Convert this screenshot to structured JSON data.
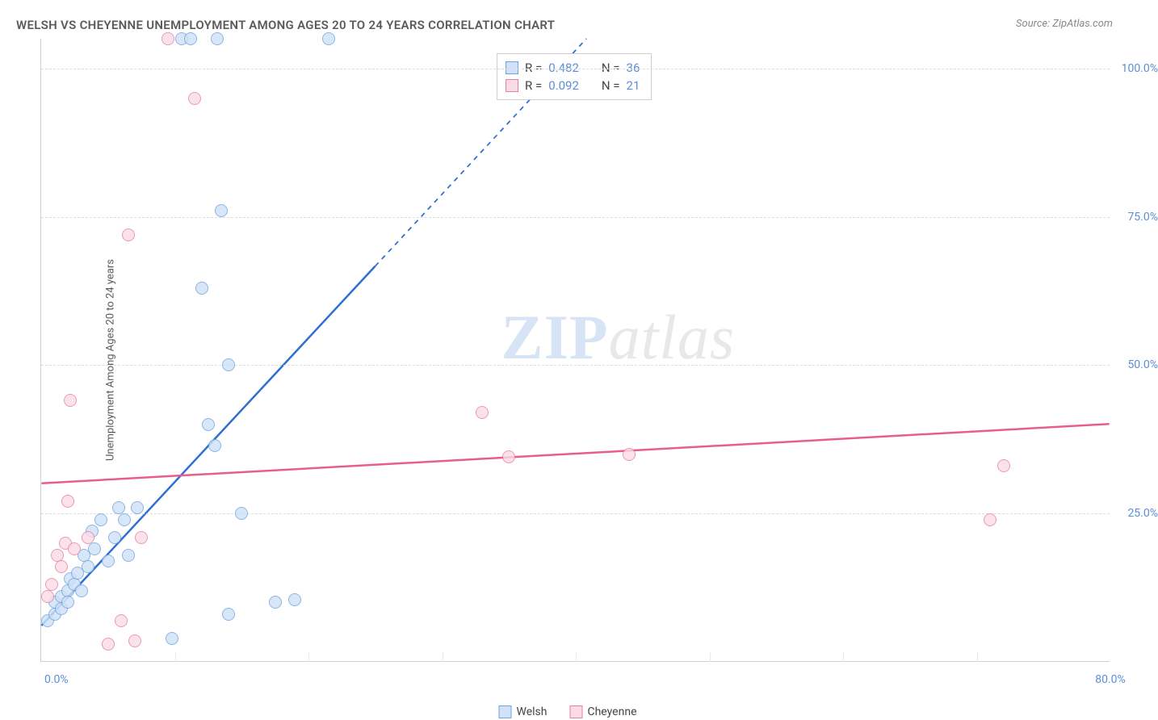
{
  "title": "WELSH VS CHEYENNE UNEMPLOYMENT AMONG AGES 20 TO 24 YEARS CORRELATION CHART",
  "source_label": "Source: ZipAtlas.com",
  "y_axis_label": "Unemployment Among Ages 20 to 24 years",
  "watermark": {
    "part1": "ZIP",
    "part2": "atlas"
  },
  "chart": {
    "type": "scatter",
    "background_color": "#ffffff",
    "grid_color": "#dcdcdc",
    "axis_color": "#cfcfcf",
    "tick_label_color": "#5b8fd6",
    "xlim": [
      0,
      80
    ],
    "ylim": [
      0,
      105
    ],
    "x_ticks": [
      0,
      80
    ],
    "x_tick_labels": [
      "0.0%",
      "80.0%"
    ],
    "x_minor_ticks_count": 7,
    "y_ticks": [
      25,
      50,
      75,
      100
    ],
    "y_tick_labels": [
      "25.0%",
      "50.0%",
      "75.0%",
      "100.0%"
    ],
    "marker_radius": 8,
    "marker_border_width": 1.5,
    "series": [
      {
        "name": "Welsh",
        "fill_color": "#cfe2f7",
        "border_color": "#6fa3dd",
        "fill_opacity": 0.8,
        "trend_line": {
          "color": "#2f6fd0",
          "width": 2.5,
          "y_at_x0": 6,
          "y_at_xmax": 200,
          "solid_until_x": 25,
          "dashed_rest": true
        },
        "stats": {
          "R": "0.482",
          "N": "36"
        },
        "points": [
          {
            "x": 0.5,
            "y": 7
          },
          {
            "x": 1,
            "y": 8
          },
          {
            "x": 1,
            "y": 10
          },
          {
            "x": 1.5,
            "y": 9
          },
          {
            "x": 1.5,
            "y": 11
          },
          {
            "x": 2,
            "y": 12
          },
          {
            "x": 2,
            "y": 10
          },
          {
            "x": 2.2,
            "y": 14
          },
          {
            "x": 2.5,
            "y": 13
          },
          {
            "x": 2.7,
            "y": 15
          },
          {
            "x": 3,
            "y": 12
          },
          {
            "x": 3.2,
            "y": 18
          },
          {
            "x": 3.5,
            "y": 16
          },
          {
            "x": 3.8,
            "y": 22
          },
          {
            "x": 4,
            "y": 19
          },
          {
            "x": 4.5,
            "y": 24
          },
          {
            "x": 5,
            "y": 17
          },
          {
            "x": 5.5,
            "y": 21
          },
          {
            "x": 5.8,
            "y": 26
          },
          {
            "x": 6.2,
            "y": 24
          },
          {
            "x": 6.5,
            "y": 18
          },
          {
            "x": 7.2,
            "y": 26
          },
          {
            "x": 9.8,
            "y": 4
          },
          {
            "x": 10.5,
            "y": 105
          },
          {
            "x": 11.2,
            "y": 105
          },
          {
            "x": 12,
            "y": 63
          },
          {
            "x": 12.5,
            "y": 40
          },
          {
            "x": 13.2,
            "y": 105
          },
          {
            "x": 13,
            "y": 36.5
          },
          {
            "x": 13.5,
            "y": 76
          },
          {
            "x": 14,
            "y": 50
          },
          {
            "x": 14,
            "y": 8
          },
          {
            "x": 15,
            "y": 25
          },
          {
            "x": 17.5,
            "y": 10
          },
          {
            "x": 19,
            "y": 10.5
          },
          {
            "x": 21.5,
            "y": 105
          }
        ]
      },
      {
        "name": "Cheyenne",
        "fill_color": "#fbdce6",
        "border_color": "#e87ea3",
        "fill_opacity": 0.8,
        "trend_line": {
          "color": "#e85d8a",
          "width": 2.5,
          "y_at_x0": 30,
          "y_at_xmax": 40,
          "solid_until_x": 80,
          "dashed_rest": false
        },
        "stats": {
          "R": "0.092",
          "N": "21"
        },
        "points": [
          {
            "x": 0.5,
            "y": 11
          },
          {
            "x": 0.8,
            "y": 13
          },
          {
            "x": 1.2,
            "y": 18
          },
          {
            "x": 1.5,
            "y": 16
          },
          {
            "x": 1.8,
            "y": 20
          },
          {
            "x": 2,
            "y": 27
          },
          {
            "x": 2.5,
            "y": 19
          },
          {
            "x": 2.2,
            "y": 44
          },
          {
            "x": 3.5,
            "y": 21
          },
          {
            "x": 5,
            "y": 3
          },
          {
            "x": 6,
            "y": 7
          },
          {
            "x": 6.5,
            "y": 72
          },
          {
            "x": 7,
            "y": 3.5
          },
          {
            "x": 7.5,
            "y": 21
          },
          {
            "x": 9.5,
            "y": 105
          },
          {
            "x": 11.5,
            "y": 95
          },
          {
            "x": 33,
            "y": 42
          },
          {
            "x": 35,
            "y": 34.5
          },
          {
            "x": 44,
            "y": 35
          },
          {
            "x": 71,
            "y": 24
          },
          {
            "x": 72,
            "y": 33
          }
        ]
      }
    ]
  },
  "legend": {
    "position": "bottom-center",
    "items": [
      {
        "label": "Welsh",
        "fill": "#cfe2f7",
        "border": "#6fa3dd"
      },
      {
        "label": "Cheyenne",
        "fill": "#fbdce6",
        "border": "#e87ea3"
      }
    ]
  },
  "stats_box": {
    "rows": [
      {
        "fill": "#cfe2f7",
        "border": "#6fa3dd",
        "R_label": "R =",
        "R": "0.482",
        "N_label": "N =",
        "N": "36"
      },
      {
        "fill": "#fbdce6",
        "border": "#e87ea3",
        "R_label": "R =",
        "R": "0.092",
        "N_label": "N =",
        "N": "21"
      }
    ]
  }
}
